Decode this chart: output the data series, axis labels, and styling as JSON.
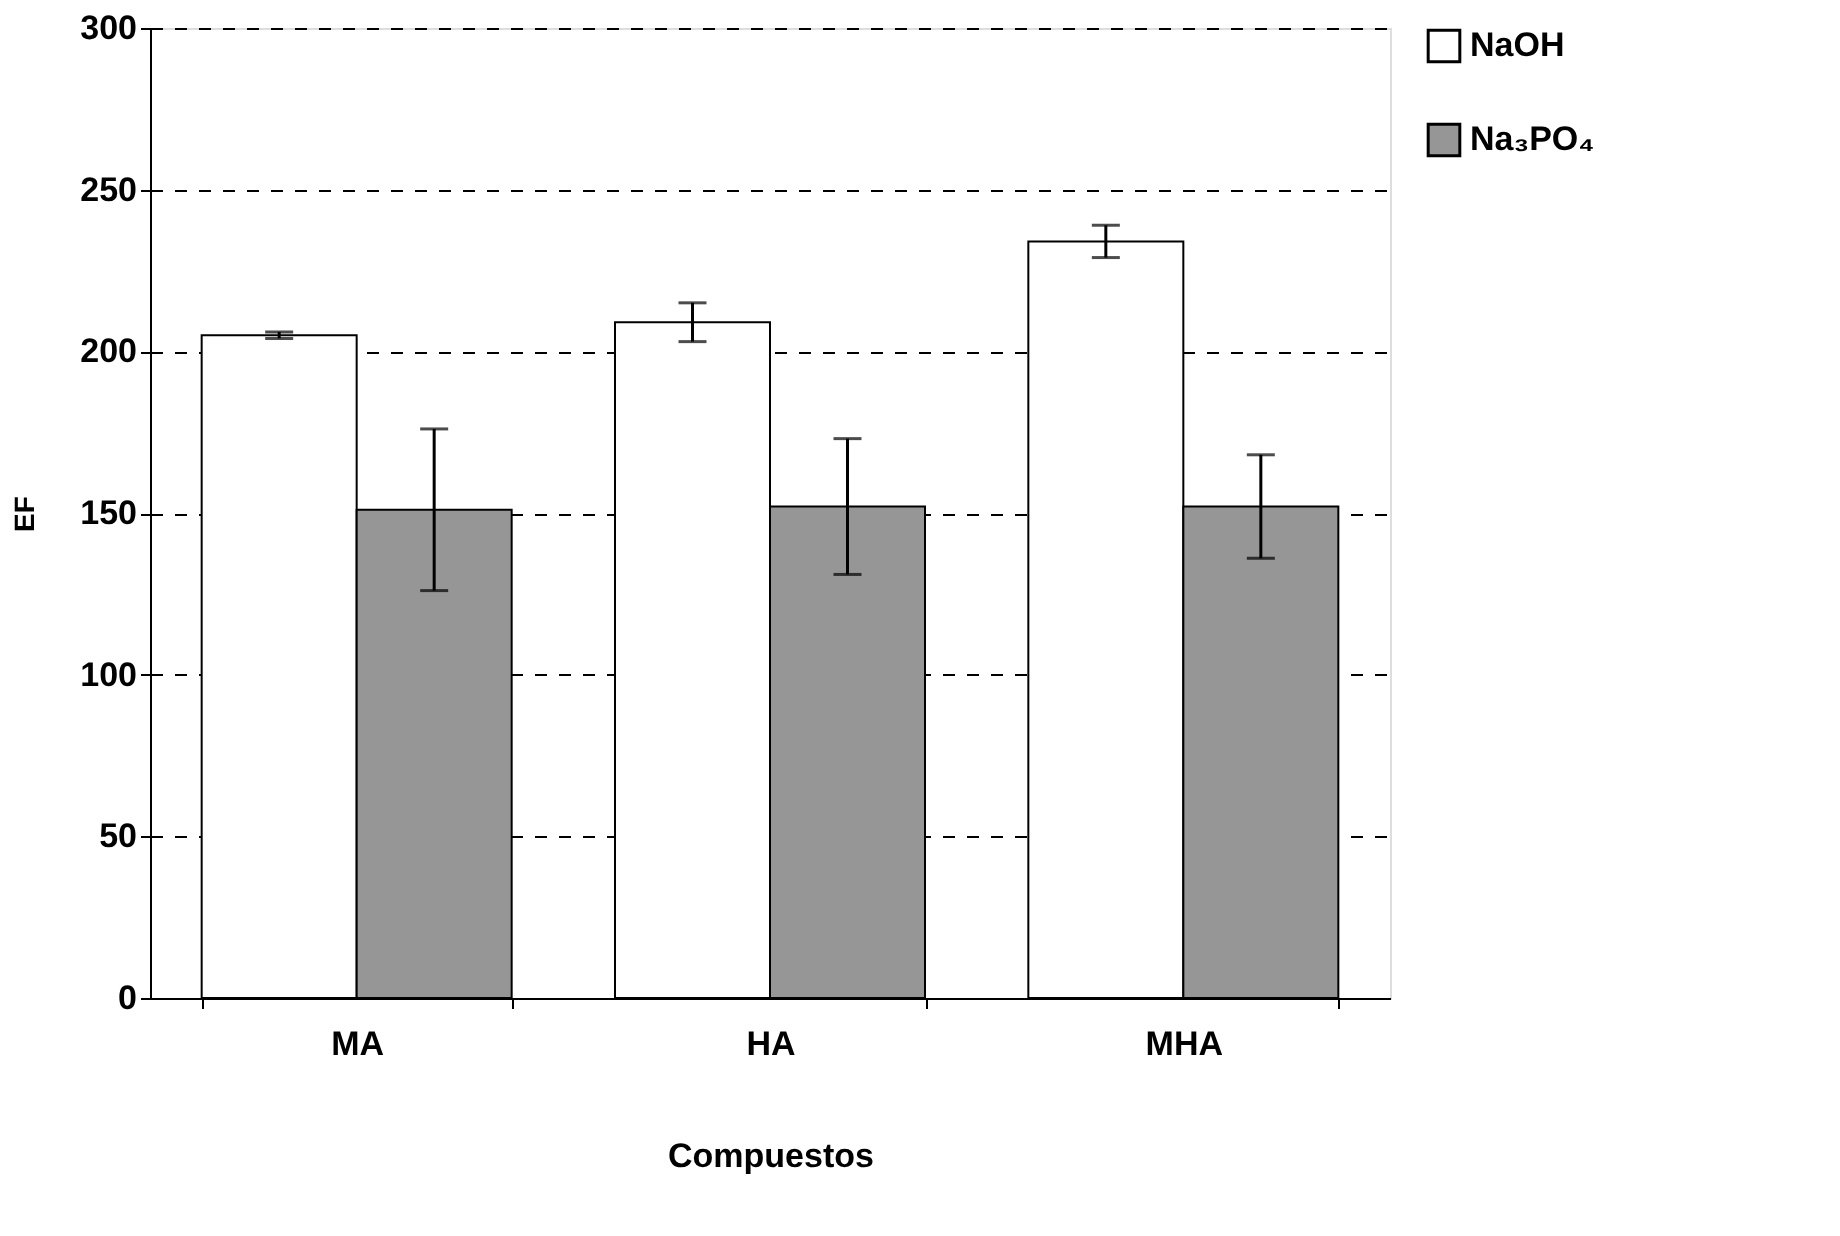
{
  "chart_data": {
    "type": "bar",
    "xlabel": "Compuestos",
    "ylabel": "EF",
    "categories": [
      "MA",
      "HA",
      "MHA"
    ],
    "series": [
      {
        "name": "NaOH",
        "color": "#ffffff",
        "values": [
          205,
          209,
          234
        ],
        "errors": [
          1,
          6,
          5
        ]
      },
      {
        "name": "Na₃PO₄",
        "color": "#969696",
        "values": [
          151,
          152,
          152
        ],
        "errors": [
          25,
          21,
          16
        ]
      }
    ],
    "ylim": [
      0,
      300
    ],
    "yticks": [
      0,
      50,
      100,
      150,
      200,
      250,
      300
    ],
    "grid": "y",
    "line_style": "dashed",
    "legend": "right"
  }
}
